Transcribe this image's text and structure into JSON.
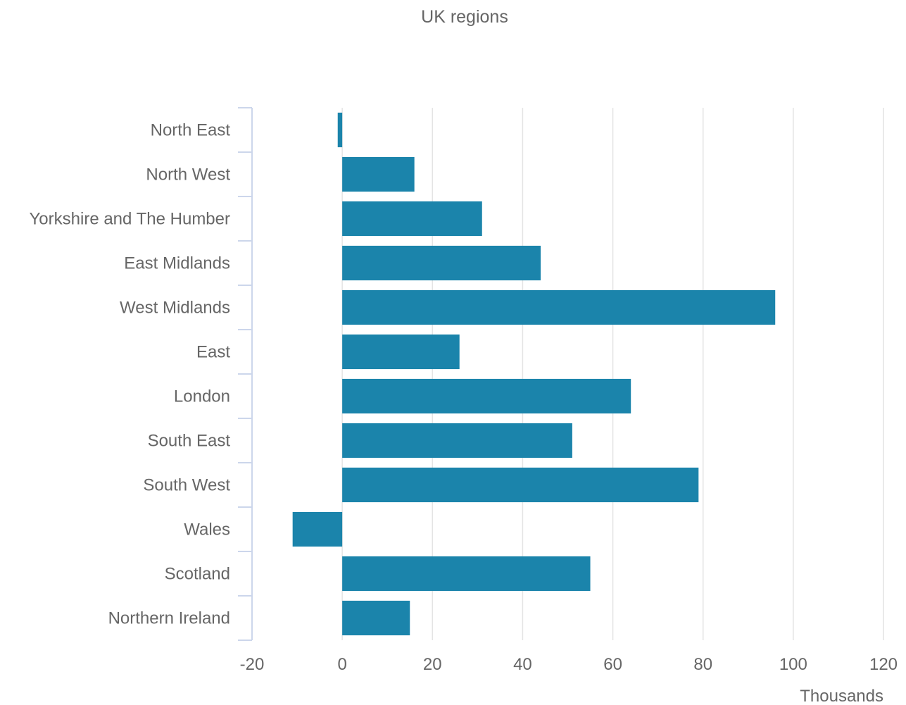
{
  "chart_data": {
    "type": "bar",
    "orientation": "horizontal",
    "title": "UK regions",
    "xlabel": "Thousands",
    "ylabel": "",
    "xlim": [
      -20,
      120
    ],
    "xticks": [
      -20,
      0,
      20,
      40,
      60,
      80,
      100,
      120
    ],
    "grid": true,
    "bar_color": "#1b84ab",
    "categories": [
      "North East",
      "North West",
      "Yorkshire and The Humber",
      "East Midlands",
      "West Midlands",
      "East",
      "London",
      "South East",
      "South West",
      "Wales",
      "Scotland",
      "Northern Ireland"
    ],
    "values": [
      -1,
      16,
      31,
      44,
      96,
      26,
      64,
      51,
      79,
      -11,
      55,
      15
    ]
  }
}
